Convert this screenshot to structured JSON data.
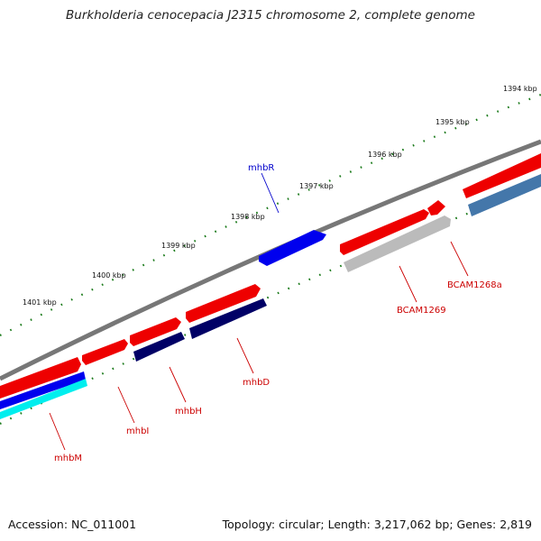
{
  "title": "Burkholderia cenocepacia J2315 chromosome 2, complete genome",
  "footer": {
    "accession": "Accession: NC_011001",
    "topology": "Topology: circular; Length: 3,217,062 bp; Genes: 2,819"
  },
  "kbp_labels": [
    "1394 kbp",
    "1395 kbp",
    "1396 kbp",
    "1397 kbp",
    "1398 kbp",
    "1399 kbp",
    "1400 kbp",
    "1401 kbp"
  ],
  "gene_labels": [
    {
      "name": "mhbR",
      "color": "#0000cc"
    },
    {
      "name": "BCAM1268a",
      "color": "#cc0000"
    },
    {
      "name": "BCAM1269",
      "color": "#cc0000"
    },
    {
      "name": "mhbD",
      "color": "#cc0000"
    },
    {
      "name": "mhbH",
      "color": "#cc0000"
    },
    {
      "name": "mhbI",
      "color": "#cc0000"
    },
    {
      "name": "mhbM",
      "color": "#cc0000"
    }
  ],
  "colors": {
    "backbone": "#777777",
    "tick": "#1a7a1a",
    "red_feature": "#ee0000",
    "blue_feature": "#0000ee",
    "navy_feature": "#000066",
    "steel_feature": "#4477aa",
    "grey_feature": "#bbbbbb",
    "cyan_feature": "#00eeee"
  }
}
